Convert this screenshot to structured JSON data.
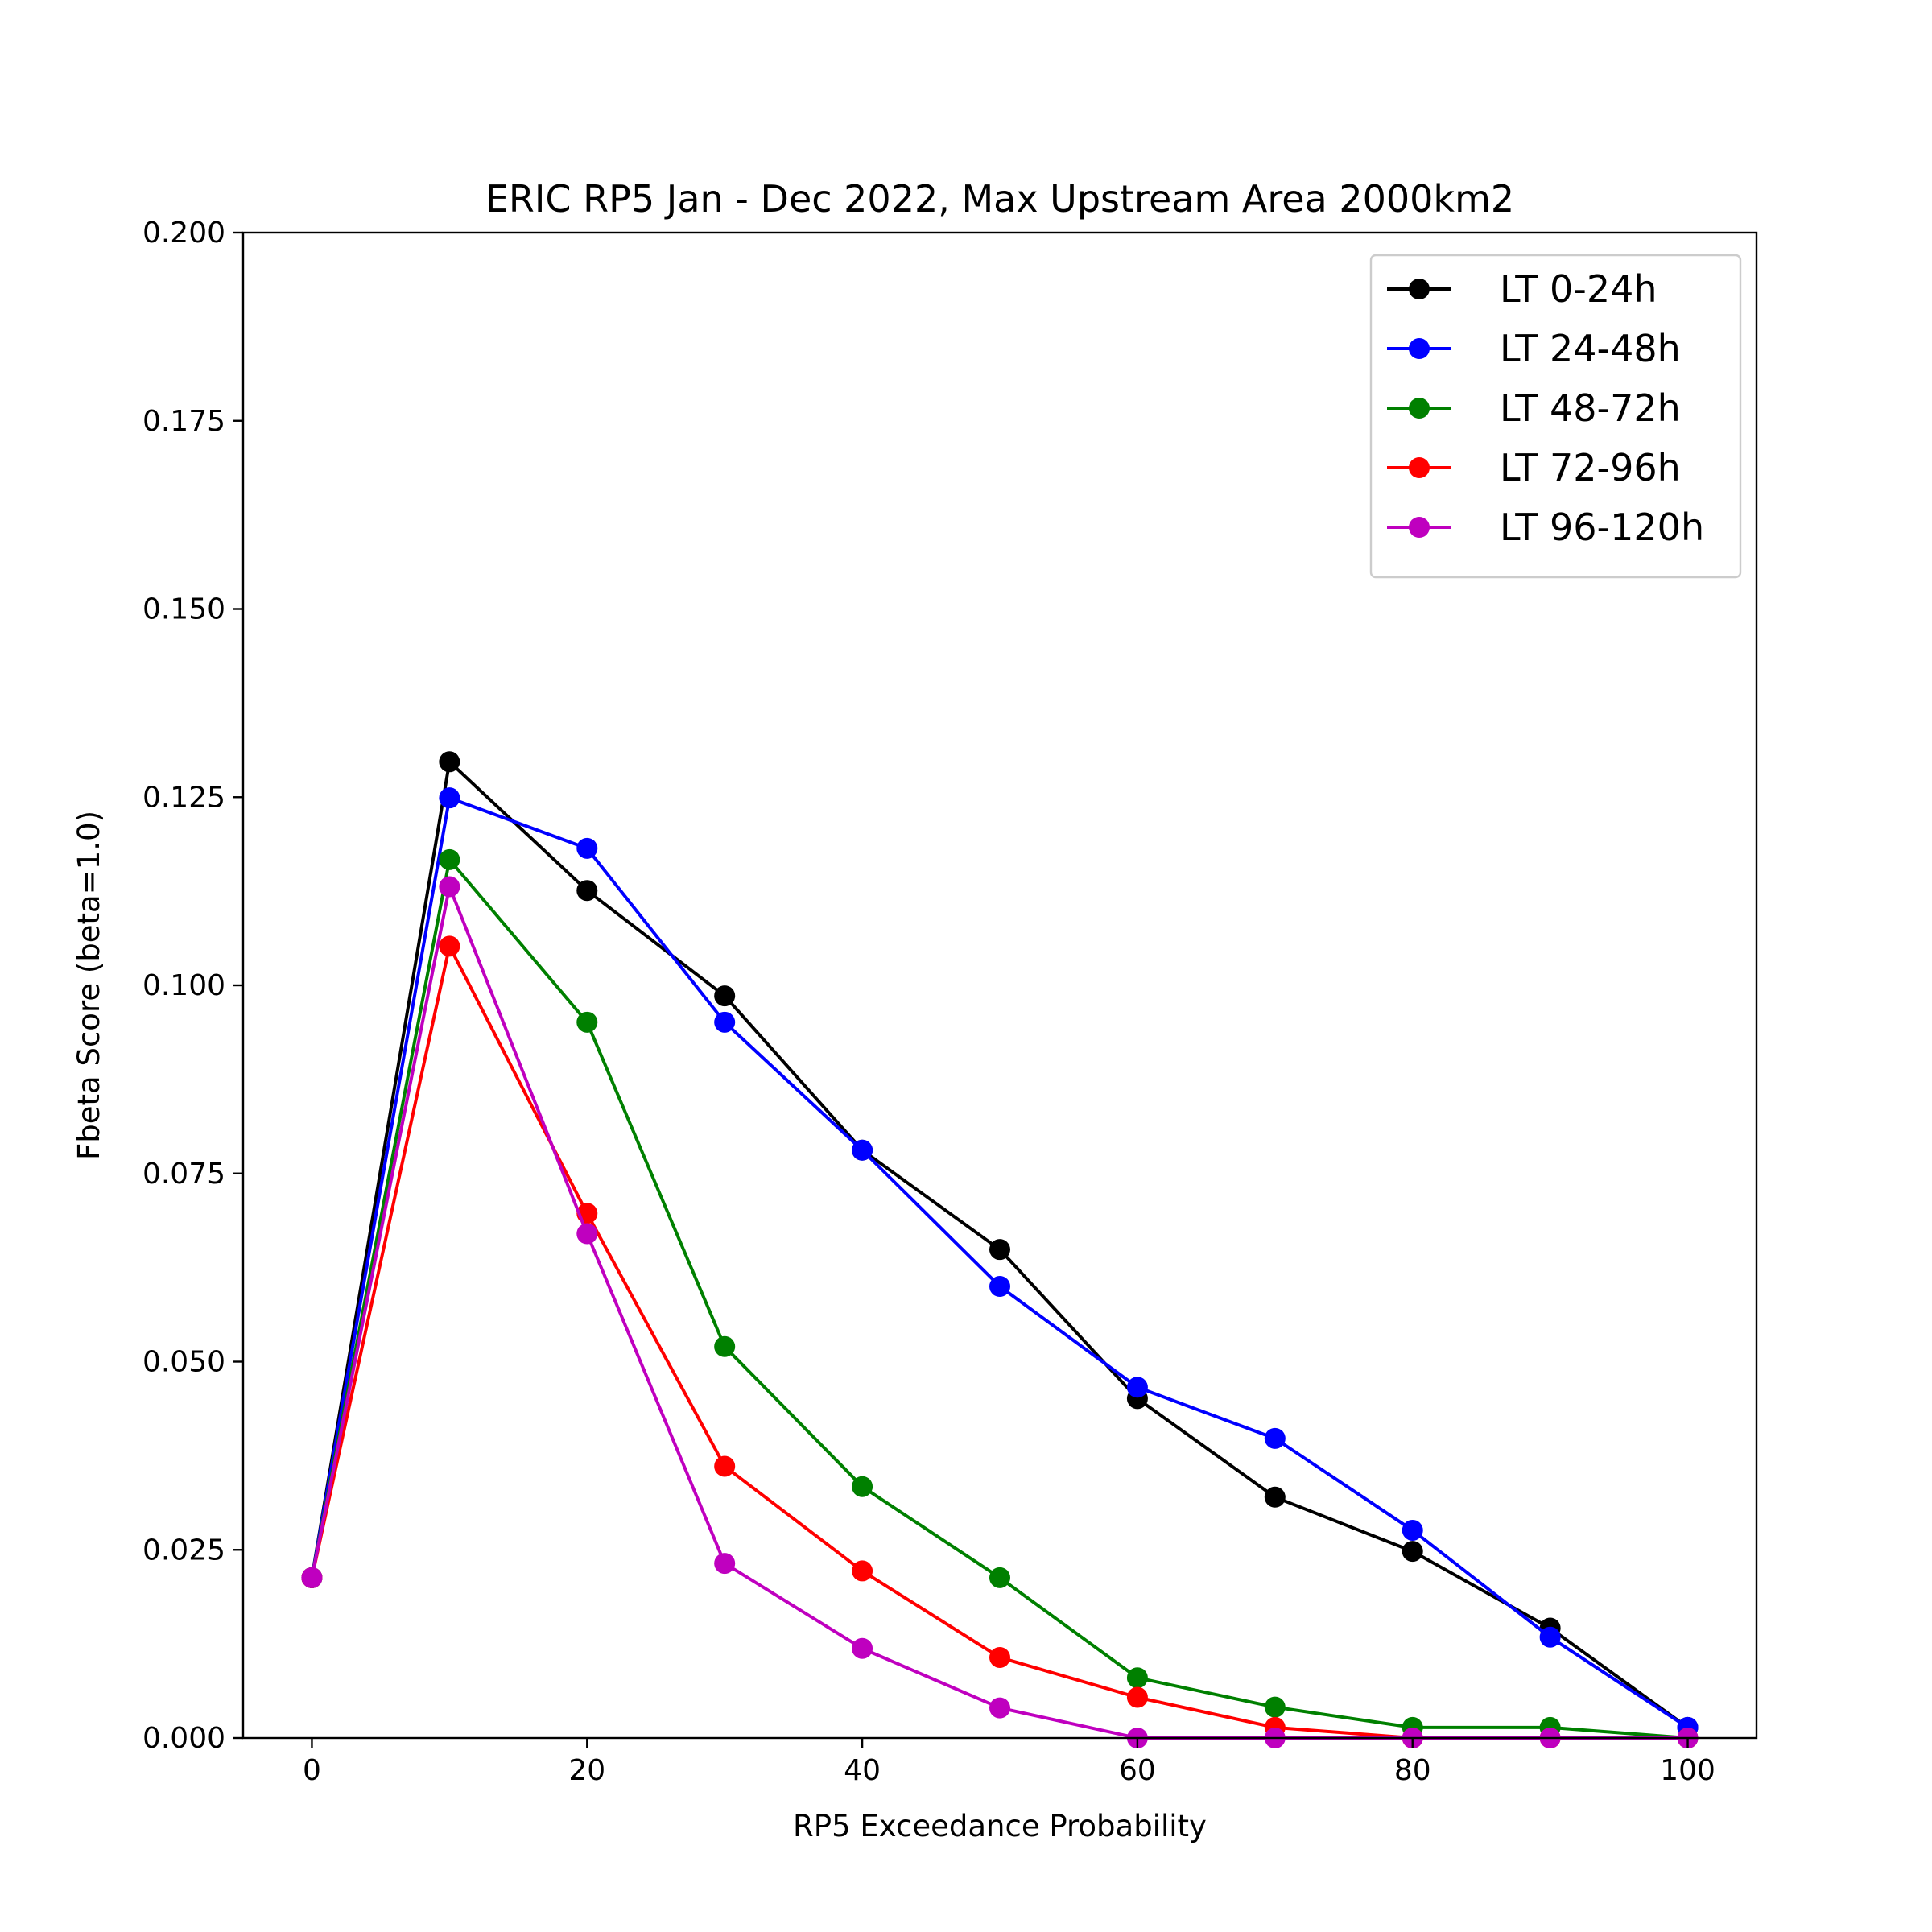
{
  "chart_data": {
    "type": "line",
    "title": "ERIC  RP5 Jan - Dec 2022, Max Upstream Area 2000km2",
    "xlabel": "RP5 Exceedance Probability",
    "ylabel": "Fbeta Score (beta=1.0)",
    "xlim": [
      -5,
      105
    ],
    "ylim": [
      0,
      0.2
    ],
    "xticks": [
      0,
      20,
      40,
      60,
      80,
      100
    ],
    "yticks": [
      0.0,
      0.025,
      0.05,
      0.075,
      0.1,
      0.125,
      0.15,
      0.175,
      0.2
    ],
    "ytick_labels": [
      "0.000",
      "0.025",
      "0.050",
      "0.075",
      "0.100",
      "0.125",
      "0.150",
      "0.175",
      "0.200"
    ],
    "xtick_labels": [
      "0",
      "20",
      "40",
      "60",
      "80",
      "100"
    ],
    "grid": false,
    "legend_position": "top-right",
    "x": [
      0,
      10,
      20,
      30,
      40,
      50,
      60,
      70,
      80,
      90,
      100
    ],
    "series": [
      {
        "name": "LT 0-24h",
        "color": "#000000",
        "values": [
          0.0213,
          0.1297,
          0.1126,
          0.0986,
          0.0781,
          0.0649,
          0.0451,
          0.032,
          0.0248,
          0.0146,
          0.0014
        ]
      },
      {
        "name": "LT 24-48h",
        "color": "#0000ff",
        "values": [
          0.0213,
          0.1249,
          0.1182,
          0.0951,
          0.0781,
          0.06,
          0.0466,
          0.0398,
          0.0276,
          0.0134,
          0.0014
        ]
      },
      {
        "name": "LT 48-72h",
        "color": "#008000",
        "values": [
          0.0213,
          0.1167,
          0.0951,
          0.052,
          0.0334,
          0.0213,
          0.008,
          0.0041,
          0.0014,
          0.0014,
          0.0
        ]
      },
      {
        "name": "LT 72-96h",
        "color": "#ff0000",
        "values": [
          0.0213,
          0.1052,
          0.0697,
          0.0361,
          0.0222,
          0.0107,
          0.0054,
          0.0014,
          0.0,
          0.0,
          0.0
        ]
      },
      {
        "name": "LT 96-120h",
        "color": "#bf00bf",
        "values": [
          0.0213,
          0.1131,
          0.067,
          0.0232,
          0.0119,
          0.004,
          0.0,
          0.0,
          0.0,
          0.0,
          0.0
        ]
      }
    ]
  }
}
